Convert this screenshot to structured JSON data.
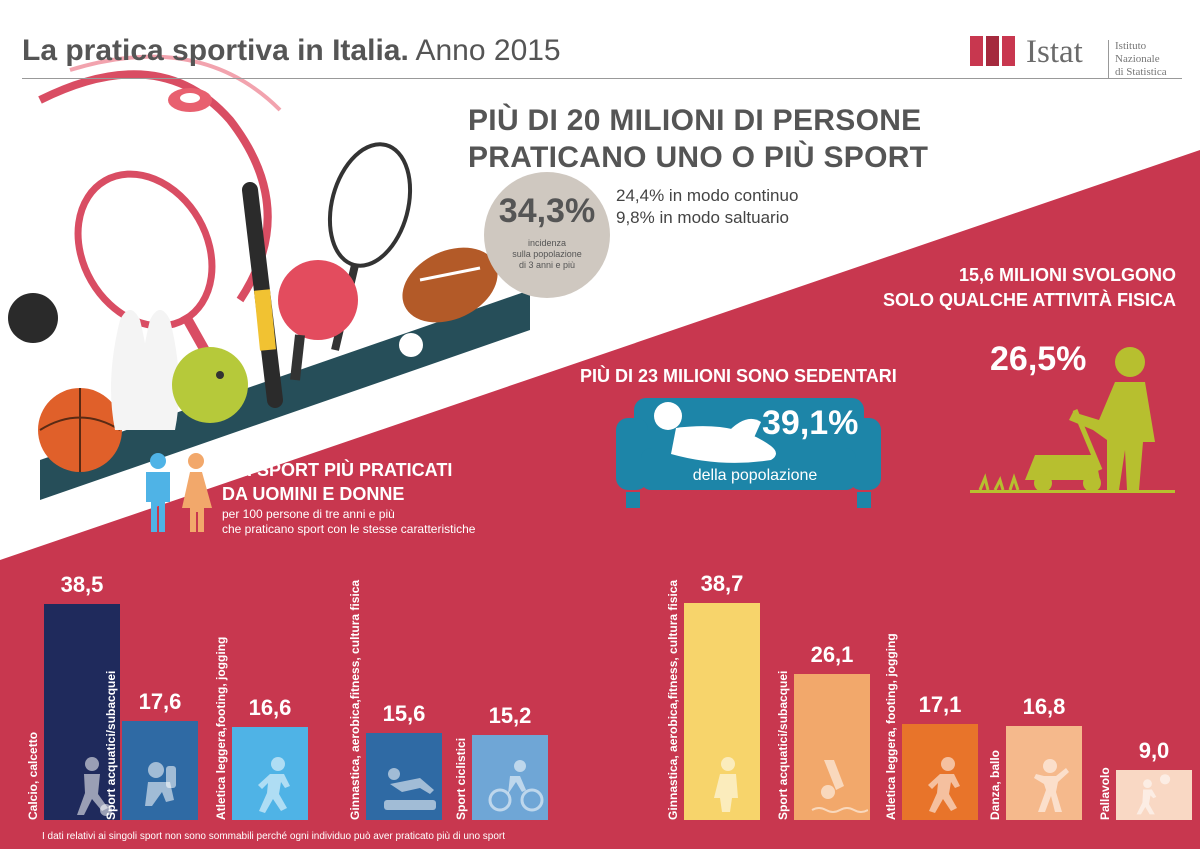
{
  "header": {
    "title_bold": "La pratica sportiva in Italia.",
    "title_light": "Anno 2015",
    "logo_brand": "Istat",
    "logo_sub_1": "Istituto Nazionale",
    "logo_sub_2": "di Statistica"
  },
  "headline": {
    "line1": "PIÙ DI 20 MILIONI DI PERSONE",
    "line2": "PRATICANO UNO O PIÙ SPORT",
    "incidence_pct": "34,3%",
    "incidence_cap_1": "incidenza",
    "incidence_cap_2": "sulla popolazione",
    "incidence_cap_3": "di 3 anni e più",
    "continuous": "24,4% in modo continuo",
    "occasional": "9,8% in modo saltuario"
  },
  "physical": {
    "line1": "15,6 MILIONI SVOLGONO",
    "line2": "SOLO QUALCHE ATTIVITÀ FISICA",
    "pct": "26,5%"
  },
  "sedentary": {
    "head": "PIÙ DI 23 MILIONI SONO SEDENTARI",
    "pct": "39,1%",
    "caption": "della popolazione"
  },
  "sports_section": {
    "head_line1": "GLI SPORT PIÙ PRATICATI",
    "head_line2": "DA UOMINI E DONNE",
    "sub_line1": "per 100 persone di tre anni e più",
    "sub_line2": "che praticano sport con le stesse caratteristiche"
  },
  "footnote": "I dati relativi ai singoli sport non sono sommabili perché ogni individuo può aver praticato più di uno sport",
  "colors": {
    "crimson": "#c8374f",
    "navy": "#1f2a5c",
    "men_blue_mid": "#2f6aa4",
    "men_blue_light": "#4fb3e6",
    "men_blue_soft": "#6fa6d6",
    "women_yellow": "#f7d46b",
    "women_peach": "#f2a86b",
    "women_orange": "#e8742a",
    "women_light": "#f5b98c",
    "women_pale": "#f9d8c4",
    "olive": "#b7bf2f"
  },
  "chart_data": [
    {
      "type": "bar",
      "series": [
        {
          "name": "Uomini",
          "values": [
            38.5,
            17.6,
            16.6,
            15.6,
            15.2
          ]
        }
      ],
      "categories": [
        "Calcio, calcetto",
        "Sport acquatici/subacquei",
        "Atletica leggera,footing, jogging",
        "Ginnastica, aerobica,fitness, cultura fisica",
        "Sport ciclistici"
      ],
      "value_labels": [
        "38,5",
        "17,6",
        "16,6",
        "15,6",
        "15,2"
      ],
      "icons": [
        "soccer-player-icon",
        "diver-icon",
        "runner-icon",
        "fitness-icon",
        "cyclist-icon"
      ]
    },
    {
      "type": "bar",
      "series": [
        {
          "name": "Donne",
          "values": [
            38.7,
            26.1,
            17.1,
            16.8,
            9.0
          ]
        }
      ],
      "categories": [
        "Ginnastica, aerobica,fitness, cultura fisica",
        "Sport acquatici/subacquei",
        "Atletica leggera, footing, jogging",
        "Danza, ballo",
        "Pallavolo"
      ],
      "value_labels": [
        "38,7",
        "26,1",
        "17,1",
        "16,8",
        "9,0"
      ],
      "icons": [
        "fitness-woman-icon",
        "swimmer-icon",
        "runner-woman-icon",
        "dancer-icon",
        "volleyball-icon"
      ]
    }
  ]
}
